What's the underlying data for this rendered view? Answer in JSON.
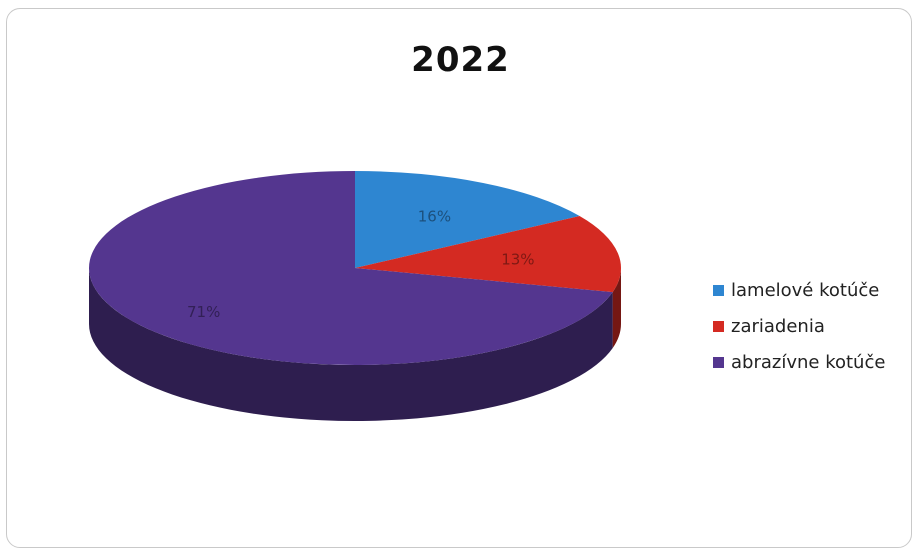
{
  "chart_data": {
    "type": "pie",
    "title": "2022",
    "style": "3d",
    "legend_position": "right",
    "slices": [
      {
        "label": "lamelové kotúče",
        "value": 16,
        "value_label": "16%",
        "color": "#2e86d1"
      },
      {
        "label": "zariadenia",
        "value": 13,
        "value_label": "13%",
        "color": "#d42a22"
      },
      {
        "label": "abrazívne kotúče",
        "value": 71,
        "value_label": "71%",
        "color": "#54368f"
      }
    ]
  }
}
